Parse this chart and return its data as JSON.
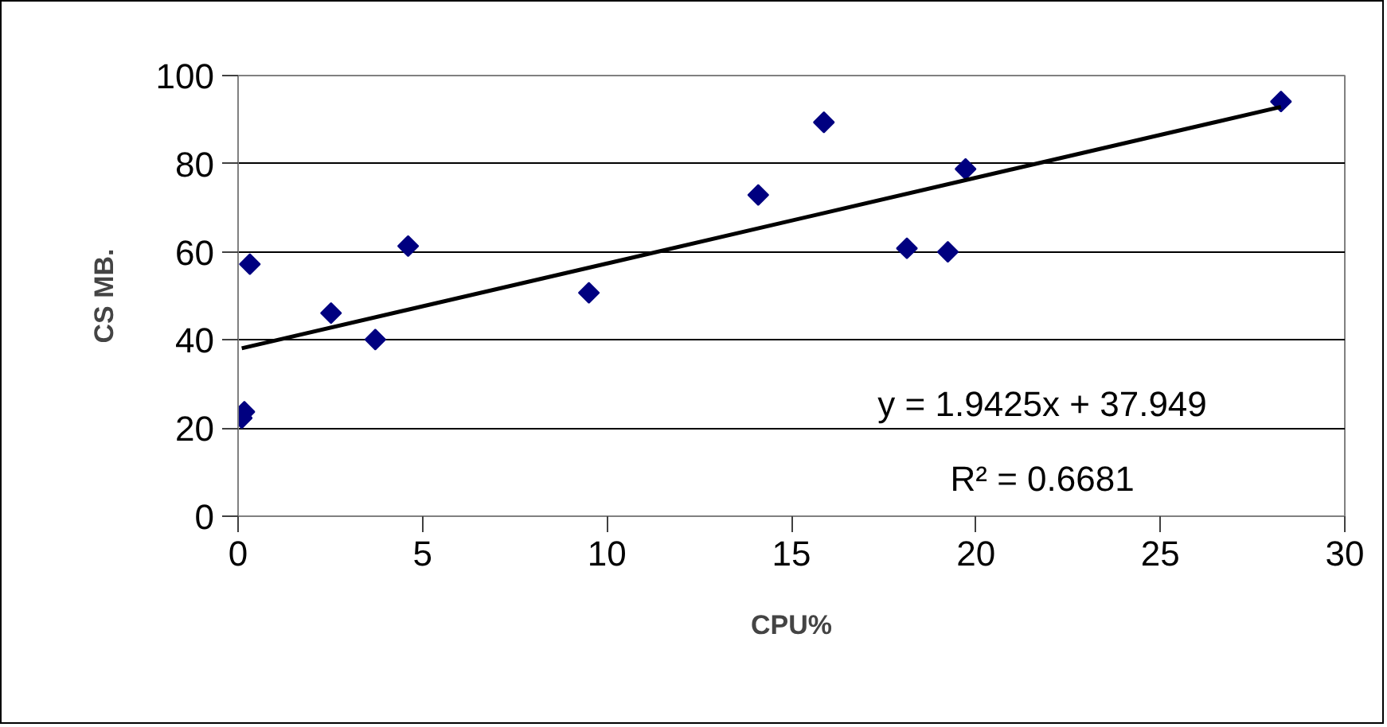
{
  "chart_data": {
    "type": "scatter",
    "xlabel": "CPU%",
    "ylabel": "CS MB.",
    "xlim": [
      0,
      30
    ],
    "xticks": [
      0,
      5,
      10,
      15,
      20,
      25,
      30
    ],
    "ylim": [
      0,
      100
    ],
    "yticks": [
      0,
      20,
      40,
      60,
      80,
      100
    ],
    "grid": "y",
    "marker": "diamond",
    "series": [
      {
        "color": "#000080",
        "x": [
          0.1,
          0.17,
          0.32,
          2.52,
          3.72,
          4.61,
          9.51,
          14.1,
          15.88,
          18.13,
          19.24,
          19.72,
          28.27
        ],
        "values": [
          22.3,
          23.7,
          57.2,
          46.1,
          40.1,
          61.3,
          50.7,
          72.9,
          89.4,
          60.8,
          60.0,
          78.8,
          94.1
        ]
      },
      {
        "type": "line",
        "marker": "none",
        "color": "#000000",
        "x": [
          0.1,
          28.27
        ],
        "values": [
          38.1,
          92.9
        ]
      }
    ],
    "annotations": [
      "y = 1.9425x + 37.949",
      "R² = 0.6681"
    ]
  }
}
